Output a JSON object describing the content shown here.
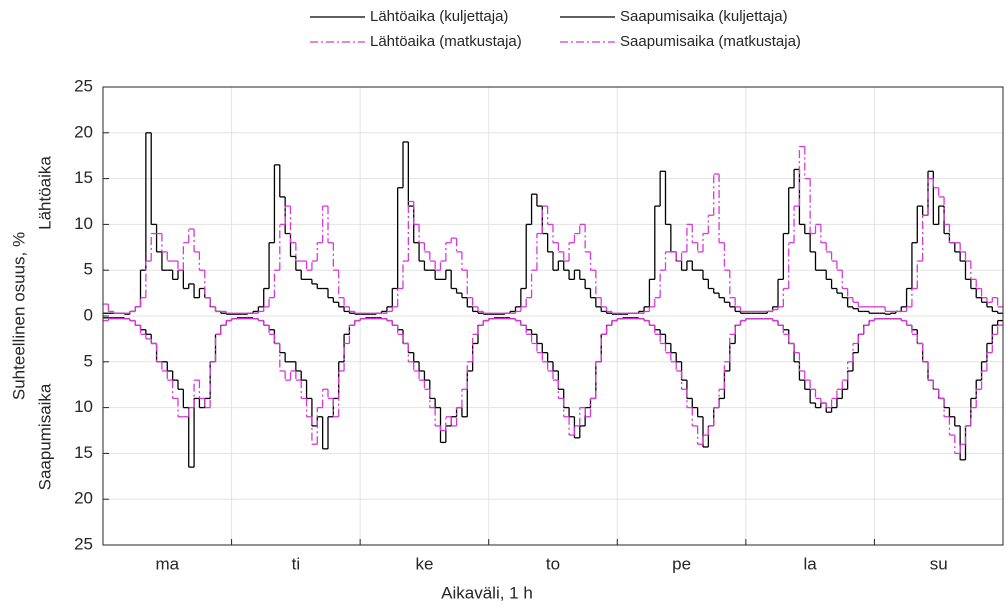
{
  "chart_data": {
    "type": "step",
    "y_label": "Suhteellinen osuus, %",
    "y_label_upper": "Lähtöaika",
    "y_label_lower": "Saapumisaika",
    "x_label": "Aikaväli, 1 h",
    "day_labels": [
      "ma",
      "ti",
      "ke",
      "to",
      "pe",
      "la",
      "su"
    ],
    "xlim": [
      0,
      168
    ],
    "xticks": [
      0,
      24,
      48,
      72,
      96,
      120,
      144,
      168
    ],
    "ylim": [
      -25,
      25
    ],
    "yticks": [
      {
        "value": -25,
        "label": "25"
      },
      {
        "value": -20,
        "label": "20"
      },
      {
        "value": -15,
        "label": "15"
      },
      {
        "value": -10,
        "label": "10"
      },
      {
        "value": -5,
        "label": "5"
      },
      0,
      5,
      10,
      15,
      20,
      25
    ],
    "grid": true,
    "x": [
      0,
      1,
      2,
      3,
      4,
      5,
      6,
      7,
      8,
      9,
      10,
      11,
      12,
      13,
      14,
      15,
      16,
      17,
      18,
      19,
      20,
      21,
      22,
      23,
      24,
      25,
      26,
      27,
      28,
      29,
      30,
      31,
      32,
      33,
      34,
      35,
      36,
      37,
      38,
      39,
      40,
      41,
      42,
      43,
      44,
      45,
      46,
      47,
      48,
      49,
      50,
      51,
      52,
      53,
      54,
      55,
      56,
      57,
      58,
      59,
      60,
      61,
      62,
      63,
      64,
      65,
      66,
      67,
      68,
      69,
      70,
      71,
      72,
      73,
      74,
      75,
      76,
      77,
      78,
      79,
      80,
      81,
      82,
      83,
      84,
      85,
      86,
      87,
      88,
      89,
      90,
      91,
      92,
      93,
      94,
      95,
      96,
      97,
      98,
      99,
      100,
      101,
      102,
      103,
      104,
      105,
      106,
      107,
      108,
      109,
      110,
      111,
      112,
      113,
      114,
      115,
      116,
      117,
      118,
      119,
      120,
      121,
      122,
      123,
      124,
      125,
      126,
      127,
      128,
      129,
      130,
      131,
      132,
      133,
      134,
      135,
      136,
      137,
      138,
      139,
      140,
      141,
      142,
      143,
      144,
      145,
      146,
      147,
      148,
      149,
      150,
      151,
      152,
      153,
      154,
      155,
      156,
      157,
      158,
      159,
      160,
      161,
      162,
      163,
      164,
      165,
      166,
      167
    ],
    "series": [
      {
        "name": "Lähtöaika (kuljettaja)",
        "color": "#000000",
        "dash": false,
        "values": [
          0.3,
          0.3,
          0.3,
          0.3,
          0.2,
          0.5,
          1,
          5,
          20,
          10,
          7,
          5,
          5,
          4,
          5,
          3,
          3.5,
          2,
          3,
          2,
          1,
          0.5,
          0.3,
          0.2,
          0.2,
          0.2,
          0.2,
          0.3,
          0.5,
          1,
          3,
          8,
          16.5,
          13,
          9,
          6.5,
          5,
          4,
          4,
          3.5,
          3,
          3,
          2,
          1.5,
          1,
          0.5,
          0.3,
          0.2,
          0.2,
          0.2,
          0.2,
          0.3,
          0.5,
          1,
          3,
          14,
          19,
          12,
          8,
          6,
          5,
          5,
          4,
          4,
          5,
          3,
          2.5,
          2,
          1,
          0.5,
          0.3,
          0.2,
          0.2,
          0.2,
          0.2,
          0.3,
          0.5,
          1,
          3,
          10,
          13.3,
          12,
          9,
          7,
          5,
          6,
          5,
          4,
          5,
          4,
          3,
          2,
          1,
          0.5,
          0.3,
          0.2,
          0.2,
          0.2,
          0.3,
          0.3,
          0.5,
          1,
          4,
          12,
          15.8,
          10,
          7,
          6,
          5,
          6,
          5,
          5,
          4,
          3,
          2.5,
          2,
          1.5,
          1,
          0.5,
          0.3,
          0.3,
          0.3,
          0.3,
          0.3,
          0.5,
          1,
          4,
          9,
          14,
          16,
          10,
          9,
          7,
          5,
          5,
          4,
          3,
          2.5,
          2,
          1,
          0.8,
          0.5,
          0.5,
          0.3,
          0.3,
          0.3,
          0.2,
          0.3,
          0.5,
          1,
          3,
          8,
          12,
          11,
          15.8,
          10,
          12,
          9,
          8,
          7,
          6,
          4,
          3,
          2,
          1.5,
          1,
          0.5,
          0.3
        ]
      },
      {
        "name": "Saapumisaika (kuljettaja)",
        "color": "#000000",
        "dash": false,
        "values": [
          -0.2,
          -0.2,
          -0.2,
          -0.2,
          -0.3,
          -0.5,
          -1,
          -1.5,
          -2,
          -3,
          -5,
          -5,
          -6,
          -7,
          -8,
          -10,
          -16.5,
          -9,
          -10,
          -9,
          -5,
          -2,
          -1,
          -0.5,
          -0.3,
          -0.2,
          -0.2,
          -0.2,
          -0.3,
          -0.5,
          -1,
          -1.5,
          -3,
          -4,
          -5,
          -5,
          -6,
          -7,
          -9,
          -12,
          -11,
          -14.5,
          -11,
          -9,
          -5,
          -2,
          -1,
          -0.5,
          -0.3,
          -0.2,
          -0.2,
          -0.2,
          -0.3,
          -0.5,
          -1,
          -1.5,
          -3,
          -4,
          -5,
          -6,
          -7,
          -9,
          -10,
          -13.8,
          -12,
          -11,
          -10,
          -11,
          -6,
          -3,
          -1,
          -0.5,
          -0.3,
          -0.2,
          -0.2,
          -0.2,
          -0.3,
          -0.5,
          -1,
          -1.5,
          -2,
          -3,
          -4,
          -5,
          -6,
          -8,
          -10,
          -11,
          -13.3,
          -12,
          -10,
          -9,
          -5,
          -2,
          -1,
          -0.5,
          -0.3,
          -0.2,
          -0.2,
          -0.2,
          -0.3,
          -0.5,
          -1,
          -1.5,
          -2,
          -3,
          -4,
          -5,
          -7,
          -9,
          -10,
          -11,
          -14.3,
          -12,
          -10,
          -9,
          -6,
          -3,
          -1,
          -0.5,
          -0.3,
          -0.3,
          -0.3,
          -0.3,
          -0.3,
          -0.5,
          -1,
          -1.5,
          -3,
          -5,
          -7,
          -8,
          -9.5,
          -10,
          -9.5,
          -10.5,
          -10,
          -9,
          -8,
          -6,
          -4,
          -2,
          -1,
          -0.5,
          -0.3,
          -0.3,
          -0.3,
          -0.3,
          -0.3,
          -0.5,
          -1,
          -1.5,
          -3,
          -5,
          -7,
          -8,
          -9,
          -10,
          -11,
          -12,
          -15.7,
          -12,
          -9,
          -7,
          -5,
          -3,
          -1,
          -0.5
        ]
      },
      {
        "name": "Lähtöaika (matkustaja)",
        "color": "#d63ad6",
        "dash": true,
        "values": [
          1.3,
          0.5,
          0.3,
          0.3,
          0.3,
          0.5,
          1,
          2,
          6,
          9,
          9,
          7,
          6,
          6,
          5,
          8,
          9.5,
          7,
          5,
          2,
          1,
          0.5,
          0.5,
          0.3,
          0.3,
          0.3,
          0.3,
          0.3,
          0.3,
          0.5,
          1,
          2,
          5,
          10,
          12,
          8,
          6,
          6,
          5,
          6,
          8,
          12,
          8,
          5,
          2,
          1,
          0.5,
          0.3,
          0.3,
          0.3,
          0.3,
          0.3,
          0.3,
          0.5,
          1,
          3,
          6,
          12.5,
          10,
          8,
          7,
          6,
          5,
          6,
          8,
          8.5,
          7,
          5,
          2,
          1,
          0.5,
          0.3,
          0.3,
          0.3,
          0.3,
          0.3,
          0.3,
          0.5,
          1,
          2,
          5,
          9,
          12,
          10,
          8,
          7,
          6,
          8,
          9,
          10,
          7,
          5,
          2,
          1,
          0.5,
          0.3,
          0.3,
          0.3,
          0.3,
          0.3,
          0.3,
          0.5,
          1,
          2,
          5,
          7,
          7,
          6,
          7,
          10,
          8,
          7,
          9,
          11,
          15.5,
          8,
          5,
          2,
          1,
          0.5,
          0.5,
          0.5,
          0.5,
          0.5,
          0.5,
          0.7,
          1,
          3,
          8,
          12,
          18.5,
          15,
          9,
          10,
          8,
          7,
          6,
          5,
          3,
          2,
          1.5,
          1,
          1,
          1,
          1,
          1,
          0.5,
          0.5,
          0.5,
          0.5,
          1,
          3,
          6,
          11,
          15,
          14,
          13,
          10,
          8,
          8,
          7,
          6,
          4,
          3,
          2,
          1.5,
          2,
          1
        ]
      },
      {
        "name": "Saapumisaika (matkustaja)",
        "color": "#d63ad6",
        "dash": true,
        "values": [
          -0.5,
          -0.3,
          -0.3,
          -0.3,
          -0.3,
          -0.5,
          -1,
          -2,
          -2.5,
          -3,
          -5,
          -6,
          -7,
          -9,
          -11,
          -11,
          -10,
          -7,
          -9,
          -10,
          -5,
          -2,
          -1,
          -0.5,
          -0.3,
          -0.3,
          -0.3,
          -0.3,
          -0.3,
          -0.5,
          -1,
          -2,
          -3,
          -6,
          -7,
          -6,
          -7,
          -9,
          -11,
          -14,
          -10,
          -8,
          -9,
          -11,
          -6,
          -3,
          -1,
          -0.5,
          -0.3,
          -0.3,
          -0.3,
          -0.3,
          -0.3,
          -0.5,
          -1,
          -2,
          -3,
          -5,
          -6,
          -7,
          -8,
          -10,
          -12,
          -12.5,
          -11,
          -12,
          -10,
          -8,
          -5,
          -2,
          -1,
          -0.5,
          -0.3,
          -0.3,
          -0.3,
          -0.3,
          -0.3,
          -0.5,
          -1,
          -2,
          -3,
          -4,
          -5,
          -6,
          -7,
          -9,
          -11,
          -13,
          -12,
          -10,
          -11,
          -9,
          -5,
          -2,
          -1,
          -0.5,
          -0.3,
          -0.3,
          -0.3,
          -0.3,
          -0.3,
          -0.5,
          -1,
          -2,
          -3,
          -4,
          -5,
          -6,
          -8,
          -10,
          -12,
          -14,
          -13,
          -12,
          -10,
          -8,
          -5,
          -2,
          -1,
          -0.5,
          -0.3,
          -0.3,
          -0.3,
          -0.3,
          -0.3,
          -0.5,
          -1,
          -2,
          -3,
          -4,
          -6,
          -7,
          -8,
          -9,
          -9.5,
          -10,
          -9,
          -8,
          -7,
          -5,
          -3,
          -2,
          -1,
          -0.5,
          -0.3,
          -0.3,
          -0.3,
          -0.3,
          -0.3,
          -0.5,
          -1,
          -2,
          -3,
          -5,
          -7,
          -8,
          -9,
          -11,
          -13,
          -15,
          -14,
          -12,
          -10,
          -8,
          -6,
          -4,
          -2,
          -1
        ]
      }
    ]
  }
}
